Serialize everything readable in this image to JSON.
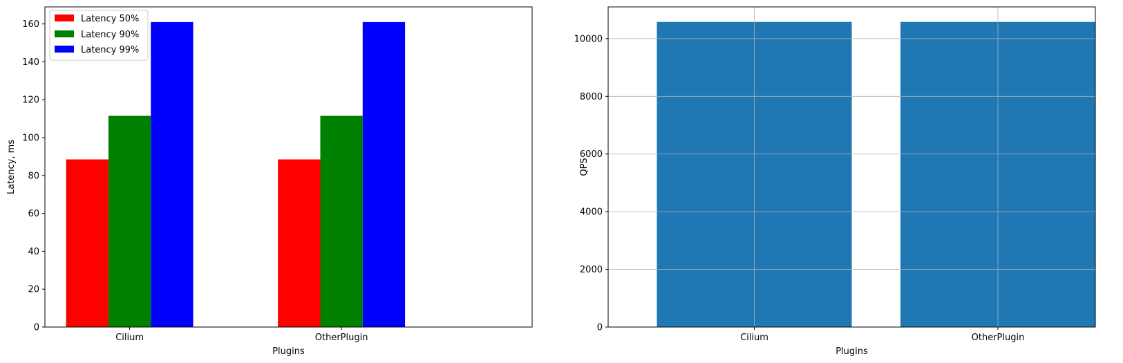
{
  "chart_data": [
    {
      "type": "bar",
      "title": "",
      "xlabel": "Plugins",
      "ylabel": "Latency, ms",
      "categories": [
        "Cilium",
        "OtherPlugin"
      ],
      "series": [
        {
          "name": "Latency 50%",
          "color": "#ff0000",
          "values": [
            88.5,
            88.5
          ]
        },
        {
          "name": "Latency 90%",
          "color": "#008000",
          "values": [
            111.5,
            111.5
          ]
        },
        {
          "name": "Latency 99%",
          "color": "#0000ff",
          "values": [
            161,
            161
          ]
        }
      ],
      "ylim": [
        0,
        169
      ],
      "yticks": [
        0,
        20,
        40,
        60,
        80,
        100,
        120,
        140,
        160
      ],
      "grid": false,
      "legend": "top-left"
    },
    {
      "type": "bar",
      "title": "",
      "xlabel": "Plugins",
      "ylabel": "QPS",
      "categories": [
        "Cilium",
        "OtherPlugin"
      ],
      "series": [
        {
          "color": "#1f77b4",
          "values": [
            10580,
            10580
          ]
        }
      ],
      "ylim": [
        0,
        11100
      ],
      "yticks": [
        0,
        2000,
        4000,
        6000,
        8000,
        10000
      ],
      "grid": true
    }
  ]
}
